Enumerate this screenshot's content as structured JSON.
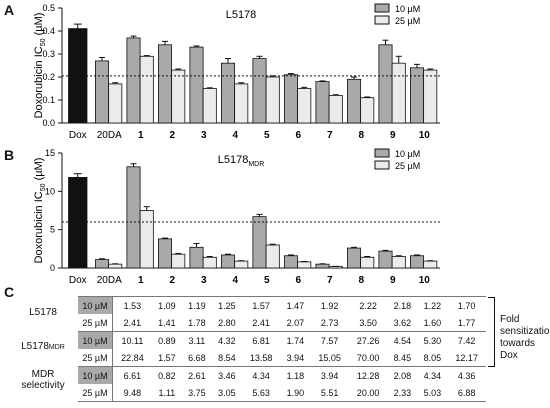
{
  "panels": [
    {
      "letter": "A",
      "title": "L5178",
      "title_sub": "",
      "ylabel": "Doxorubicin IC",
      "ylabel_sub": "50",
      "ylabel_unit": " (µM)",
      "legend": [
        "10 µM",
        "25 µM"
      ]
    },
    {
      "letter": "B",
      "title": "L5178",
      "title_sub": "MDR",
      "ylabel": "Doxorubicin IC",
      "ylabel_sub": "50",
      "ylabel_unit": " (µM)",
      "legend": [
        "10 µM",
        "25 µM"
      ]
    }
  ],
  "chart_data": [
    {
      "type": "bar",
      "title": "L5178",
      "ylabel": "Doxorubicin IC50 (µM)",
      "ylim": [
        0,
        0.5
      ],
      "yticks": [
        "0.0",
        "0.1",
        "0.2",
        "0.3",
        "0.4",
        "0.5"
      ],
      "categories": [
        "Dox",
        "20DA",
        "1",
        "2",
        "3",
        "4",
        "5",
        "6",
        "7",
        "8",
        "9",
        "10"
      ],
      "dox_value": 0.41,
      "dox_error": 0.02,
      "reference_line": 0.205,
      "series": [
        {
          "name": "10 µM",
          "values": [
            null,
            0.27,
            0.37,
            0.34,
            0.33,
            0.26,
            0.28,
            0.21,
            0.18,
            0.19,
            0.34,
            0.24
          ],
          "errors": [
            null,
            0.015,
            0.008,
            0.015,
            0.005,
            0.02,
            0.01,
            0.005,
            0.003,
            0.01,
            0.02,
            0.015
          ]
        },
        {
          "name": "25 µM",
          "values": [
            null,
            0.17,
            0.29,
            0.23,
            0.15,
            0.17,
            0.2,
            0.15,
            0.12,
            0.11,
            0.26,
            0.23
          ],
          "errors": [
            null,
            0.005,
            0.003,
            0.005,
            0.003,
            0.005,
            0.005,
            0.005,
            0.003,
            0.003,
            0.03,
            0.005
          ]
        }
      ],
      "colors": {
        "dox": "#111111",
        "s10": "#a9a9a9",
        "s25": "#ebebeb"
      }
    },
    {
      "type": "bar",
      "title": "L5178MDR",
      "ylabel": "Doxorubicin IC50 (µM)",
      "ylim": [
        0,
        15
      ],
      "yticks": [
        "0",
        "5",
        "10",
        "15"
      ],
      "categories": [
        "Dox",
        "20DA",
        "1",
        "2",
        "3",
        "4",
        "5",
        "6",
        "7",
        "8",
        "9",
        "10"
      ],
      "dox_value": 11.8,
      "dox_error": 0.5,
      "reference_line": 6.0,
      "series": [
        {
          "name": "10 µM",
          "values": [
            null,
            1.1,
            13.2,
            3.8,
            2.7,
            1.7,
            6.7,
            1.6,
            0.5,
            2.6,
            2.2,
            1.6
          ],
          "errors": [
            null,
            0.1,
            0.4,
            0.1,
            0.5,
            0.1,
            0.3,
            0.1,
            0.05,
            0.1,
            0.1,
            0.1
          ]
        },
        {
          "name": "25 µM",
          "values": [
            null,
            0.5,
            7.5,
            1.8,
            1.4,
            0.9,
            3.0,
            0.8,
            0.2,
            1.4,
            1.5,
            0.9
          ],
          "errors": [
            null,
            0.05,
            0.5,
            0.1,
            0.1,
            0.05,
            0.1,
            0.05,
            0.02,
            0.1,
            0.1,
            0.05
          ]
        }
      ],
      "colors": {
        "dox": "#111111",
        "s10": "#a9a9a9",
        "s25": "#ebebeb"
      }
    }
  ],
  "table": {
    "letter": "C",
    "rows": [
      {
        "group": "L5178",
        "group_sub": "",
        "conc": "10 µM",
        "values": [
          "1.53",
          "1.09",
          "1.19",
          "1.25",
          "1.57",
          "1.47",
          "1.92",
          "2.22",
          "2.18",
          "1.22",
          "1.70"
        ]
      },
      {
        "group": "",
        "group_sub": "",
        "conc": "25 µM",
        "values": [
          "2.41",
          "1.41",
          "1.78",
          "2.80",
          "2.41",
          "2.07",
          "2.73",
          "3.50",
          "3.62",
          "1.60",
          "1.77"
        ]
      },
      {
        "group": "L5178",
        "group_sub": "MDR",
        "conc": "10 µM",
        "values": [
          "10.11",
          "0.89",
          "3.11",
          "4.32",
          "6.81",
          "1.74",
          "7.57",
          "27.26",
          "4.54",
          "5.30",
          "7.42"
        ]
      },
      {
        "group": "",
        "group_sub": "",
        "conc": "25 µM",
        "values": [
          "22.84",
          "1.57",
          "6.68",
          "8.54",
          "13.58",
          "3.94",
          "15.05",
          "70.00",
          "8.45",
          "8.05",
          "12.17"
        ]
      },
      {
        "group": "MDR selectivity",
        "group_sub": "",
        "conc": "10 µM",
        "values": [
          "6.61",
          "0.82",
          "2.61",
          "3.46",
          "4.34",
          "1.18",
          "3.94",
          "12.28",
          "2.08",
          "4.34",
          "4.36"
        ]
      },
      {
        "group": "",
        "group_sub": "",
        "conc": "25 µM",
        "values": [
          "9.48",
          "1.11",
          "3.75",
          "3.05",
          "5.63",
          "1.90",
          "5.51",
          "20.00",
          "2.33",
          "5.03",
          "6.88"
        ]
      }
    ],
    "group_labels": {
      "l5178": "L5178",
      "mdr": "L5178",
      "mdr_sub": "MDR",
      "sel_line1": "MDR",
      "sel_line2": "selectivity"
    },
    "note_line1": "Fold",
    "note_line2": "sensitization",
    "note_line3": "towards Dox"
  }
}
